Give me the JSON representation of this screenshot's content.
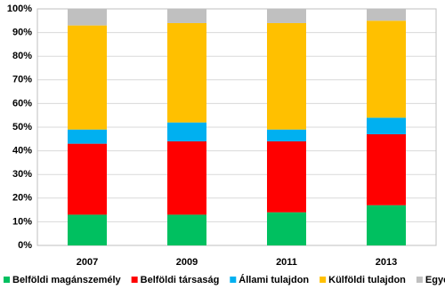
{
  "chart_data": {
    "type": "stacked-bar",
    "categories": [
      "2007",
      "2009",
      "2011",
      "2013"
    ],
    "series": [
      {
        "name": "Belföldi magánszemély",
        "color": "#00c060",
        "values": [
          13,
          13,
          14,
          17
        ]
      },
      {
        "name": "Belföldi társaság",
        "color": "#ff0000",
        "values": [
          30,
          31,
          30,
          30
        ]
      },
      {
        "name": "Állami tulajdon",
        "color": "#00b0f0",
        "values": [
          6,
          8,
          5,
          7
        ]
      },
      {
        "name": "Külföldi tulajdon",
        "color": "#ffc000",
        "values": [
          44,
          42,
          45,
          41
        ]
      },
      {
        "name": "Egyéb",
        "color": "#c0c0c0",
        "values": [
          7,
          6,
          6,
          5
        ]
      }
    ],
    "ylim": [
      0,
      100
    ],
    "yticks": [
      {
        "value": 0,
        "label": "0%"
      },
      {
        "value": 10,
        "label": "10%"
      },
      {
        "value": 20,
        "label": "20%"
      },
      {
        "value": 30,
        "label": "30%"
      },
      {
        "value": 40,
        "label": "40%"
      },
      {
        "value": 50,
        "label": "50%"
      },
      {
        "value": 60,
        "label": "60%"
      },
      {
        "value": 70,
        "label": "70%"
      },
      {
        "value": 80,
        "label": "80%"
      },
      {
        "value": 90,
        "label": "90%"
      },
      {
        "value": 100,
        "label": "100%"
      }
    ],
    "grid": true,
    "legend": "bottom"
  }
}
